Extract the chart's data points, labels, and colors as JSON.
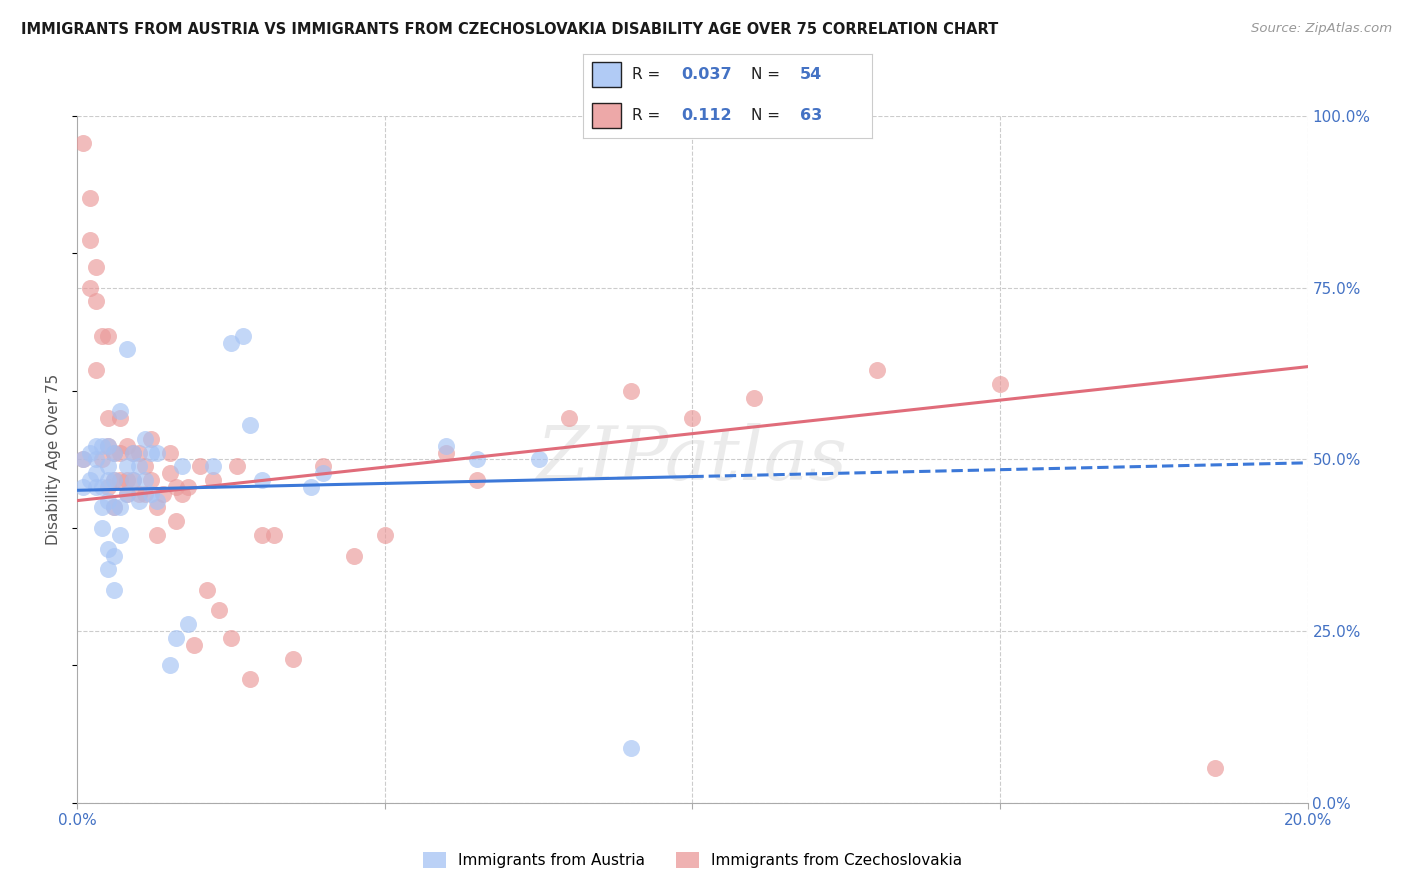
{
  "title": "IMMIGRANTS FROM AUSTRIA VS IMMIGRANTS FROM CZECHOSLOVAKIA DISABILITY AGE OVER 75 CORRELATION CHART",
  "source": "Source: ZipAtlas.com",
  "ylabel": "Disability Age Over 75",
  "xlim": [
    0.0,
    0.2
  ],
  "ylim": [
    0.0,
    1.0
  ],
  "yticks_right": [
    0.0,
    0.25,
    0.5,
    0.75,
    1.0
  ],
  "ytick_labels_right": [
    "0.0%",
    "25.0%",
    "50.0%",
    "75.0%",
    "100.0%"
  ],
  "xtick_vals": [
    0.0,
    0.05,
    0.1,
    0.15,
    0.2
  ],
  "xtick_labels": [
    "0.0%",
    "",
    "",
    "",
    "20.0%"
  ],
  "austria_color": "#a4c2f4",
  "czech_color": "#ea9999",
  "austria_line_color": "#3c78d8",
  "czech_line_color": "#e06c7a",
  "legend_R_austria": "0.037",
  "legend_N_austria": "54",
  "legend_R_czech": "0.112",
  "legend_N_czech": "63",
  "legend_label_austria": "Immigrants from Austria",
  "legend_label_czech": "Immigrants from Czechoslovakia",
  "watermark": "ZIPatlas",
  "background_color": "#ffffff",
  "grid_color": "#cccccc",
  "title_color": "#1a1a1a",
  "axis_label_color": "#4472c4",
  "austria_line_x0": 0.0,
  "austria_line_y0": 0.455,
  "austria_line_x1": 0.1,
  "austria_line_y1": 0.475,
  "austria_line_solid_end": 0.1,
  "austria_line_dash_x1": 0.2,
  "austria_line_dash_y1": 0.495,
  "czech_line_x0": 0.0,
  "czech_line_y0": 0.44,
  "czech_line_x1": 0.2,
  "czech_line_y1": 0.635,
  "austria_x": [
    0.001,
    0.001,
    0.002,
    0.002,
    0.003,
    0.003,
    0.003,
    0.003,
    0.004,
    0.004,
    0.004,
    0.004,
    0.005,
    0.005,
    0.005,
    0.005,
    0.005,
    0.005,
    0.006,
    0.006,
    0.006,
    0.006,
    0.006,
    0.007,
    0.007,
    0.007,
    0.008,
    0.008,
    0.008,
    0.009,
    0.009,
    0.01,
    0.01,
    0.011,
    0.011,
    0.012,
    0.012,
    0.013,
    0.013,
    0.015,
    0.016,
    0.017,
    0.018,
    0.022,
    0.025,
    0.027,
    0.028,
    0.03,
    0.038,
    0.04,
    0.06,
    0.065,
    0.075,
    0.09
  ],
  "austria_y": [
    0.46,
    0.5,
    0.47,
    0.51,
    0.46,
    0.48,
    0.5,
    0.52,
    0.4,
    0.43,
    0.46,
    0.52,
    0.34,
    0.37,
    0.44,
    0.47,
    0.49,
    0.52,
    0.31,
    0.36,
    0.43,
    0.47,
    0.51,
    0.39,
    0.43,
    0.57,
    0.45,
    0.49,
    0.66,
    0.47,
    0.51,
    0.44,
    0.49,
    0.47,
    0.53,
    0.45,
    0.51,
    0.44,
    0.51,
    0.2,
    0.24,
    0.49,
    0.26,
    0.49,
    0.67,
    0.68,
    0.55,
    0.47,
    0.46,
    0.48,
    0.52,
    0.5,
    0.5,
    0.08
  ],
  "czech_x": [
    0.001,
    0.001,
    0.002,
    0.002,
    0.002,
    0.003,
    0.003,
    0.003,
    0.004,
    0.004,
    0.005,
    0.005,
    0.005,
    0.005,
    0.006,
    0.006,
    0.006,
    0.007,
    0.007,
    0.007,
    0.008,
    0.008,
    0.008,
    0.009,
    0.009,
    0.01,
    0.01,
    0.011,
    0.011,
    0.012,
    0.012,
    0.013,
    0.013,
    0.014,
    0.015,
    0.015,
    0.016,
    0.016,
    0.017,
    0.018,
    0.019,
    0.02,
    0.021,
    0.022,
    0.023,
    0.025,
    0.026,
    0.028,
    0.03,
    0.032,
    0.035,
    0.04,
    0.045,
    0.05,
    0.06,
    0.065,
    0.08,
    0.09,
    0.1,
    0.11,
    0.13,
    0.15,
    0.185
  ],
  "czech_y": [
    0.96,
    0.5,
    0.88,
    0.75,
    0.82,
    0.73,
    0.63,
    0.78,
    0.68,
    0.5,
    0.68,
    0.56,
    0.52,
    0.46,
    0.51,
    0.47,
    0.43,
    0.56,
    0.51,
    0.47,
    0.45,
    0.52,
    0.47,
    0.47,
    0.51,
    0.51,
    0.45,
    0.45,
    0.49,
    0.53,
    0.47,
    0.43,
    0.39,
    0.45,
    0.51,
    0.48,
    0.46,
    0.41,
    0.45,
    0.46,
    0.23,
    0.49,
    0.31,
    0.47,
    0.28,
    0.24,
    0.49,
    0.18,
    0.39,
    0.39,
    0.21,
    0.49,
    0.36,
    0.39,
    0.51,
    0.47,
    0.56,
    0.6,
    0.56,
    0.59,
    0.63,
    0.61,
    0.05
  ]
}
